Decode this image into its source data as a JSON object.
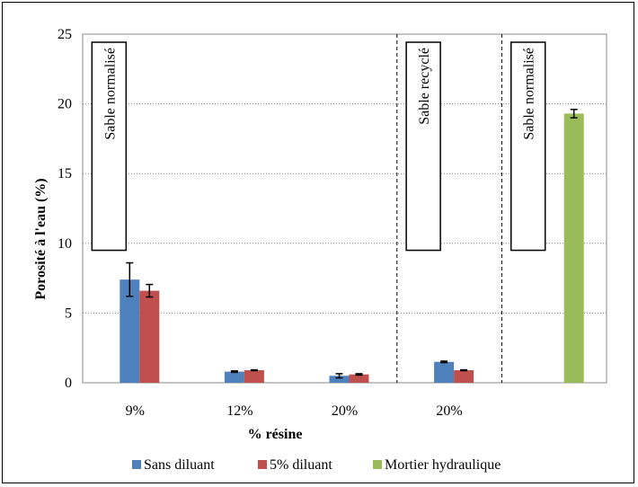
{
  "chart_data": {
    "type": "bar",
    "ylabel": "Porosité à l'eau (%)",
    "xlabel": "% résine",
    "ylim": [
      0,
      25
    ],
    "yticks": [
      0,
      5,
      10,
      15,
      20,
      25
    ],
    "grid": true,
    "categories": [
      "9%",
      "12%",
      "20%",
      "20%",
      ""
    ],
    "series": [
      {
        "name": "Sans diluant",
        "color": "#4F81BD",
        "values": [
          7.4,
          0.8,
          0.5,
          1.5,
          null
        ],
        "errors": [
          1.2,
          0.05,
          0.15,
          0.05,
          null
        ]
      },
      {
        "name": "5% diluant",
        "color": "#C0504D",
        "values": [
          6.6,
          0.9,
          0.6,
          0.9,
          null
        ],
        "errors": [
          0.45,
          0.03,
          0.05,
          0.03,
          null
        ]
      },
      {
        "name": "Mortier hydraulique",
        "color": "#9BBB59",
        "values": [
          null,
          null,
          null,
          null,
          19.3
        ],
        "errors": [
          null,
          null,
          null,
          null,
          0.3
        ]
      }
    ],
    "annotations": [
      "Sable normalisé",
      "Sable recyclé",
      "Sable normalisé"
    ],
    "legend_position": "bottom"
  }
}
